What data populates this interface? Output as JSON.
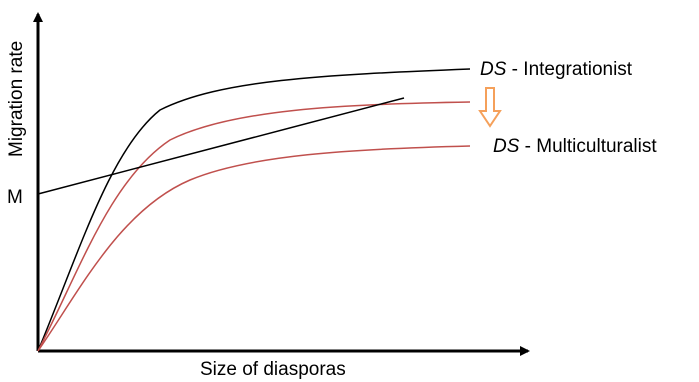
{
  "axes": {
    "y_label": "Migration rate",
    "x_label": "Size of diasporas",
    "y_tick": "M"
  },
  "curves": [
    {
      "id": "integrationist",
      "prefix": "DS",
      "suffix": " - Integrationist",
      "color": "#000000"
    },
    {
      "id": "multiculturalist",
      "prefix": "DS",
      "suffix": " - Multiculturalist",
      "color": "#c0504d"
    },
    {
      "id": "intermediate",
      "prefix": "",
      "suffix": "",
      "color": "#c0504d"
    }
  ],
  "shift_arrow": {
    "icon": "down-arrow-icon",
    "color": "#f5a05a",
    "direction": "down"
  },
  "migration_line": {
    "color": "#000000"
  },
  "colors": {
    "axis": "#000000",
    "background": "#ffffff"
  }
}
